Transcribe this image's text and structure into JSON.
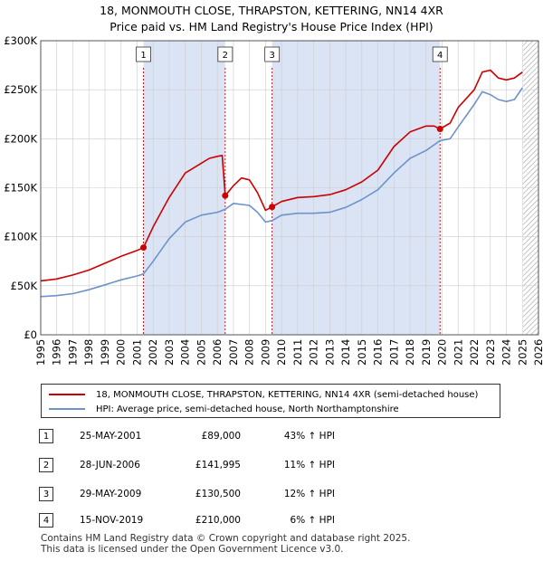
{
  "title_line1": "18, MONMOUTH CLOSE, THRAPSTON, KETTERING, NN14 4XR",
  "title_line2": "Price paid vs. HM Land Registry's House Price Index (HPI)",
  "colors": {
    "price_line": "#cc0000",
    "hpi_line": "#6d93c8",
    "shade": "#dbe4f5",
    "grid": "#cccccc",
    "hatch": "#9e9e9e"
  },
  "chart_data": {
    "type": "line",
    "title": "Price paid vs. HM Land Registry's House Price Index (HPI)",
    "xlabel": "",
    "ylabel": "",
    "xlim": [
      1995,
      2026
    ],
    "ylim": [
      0,
      300000
    ],
    "ytick_values": [
      0,
      50000,
      100000,
      150000,
      200000,
      250000,
      300000
    ],
    "ytick_labels": [
      "£0",
      "£50K",
      "£100K",
      "£150K",
      "£200K",
      "£250K",
      "£300K"
    ],
    "xtick_values": [
      1995,
      1996,
      1997,
      1998,
      1999,
      2000,
      2001,
      2002,
      2003,
      2004,
      2005,
      2006,
      2007,
      2008,
      2009,
      2010,
      2011,
      2012,
      2013,
      2014,
      2015,
      2016,
      2017,
      2018,
      2019,
      2020,
      2021,
      2022,
      2023,
      2024,
      2025,
      2026
    ],
    "xtick_labels": [
      "1995",
      "1996",
      "1997",
      "1998",
      "1999",
      "2000",
      "2001",
      "2002",
      "2003",
      "2004",
      "2005",
      "2006",
      "2007",
      "2008",
      "2009",
      "2010",
      "2011",
      "2012",
      "2013",
      "2014",
      "2015",
      "2016",
      "2017",
      "2018",
      "2019",
      "2020",
      "2021",
      "2022",
      "2023",
      "2024",
      "2025",
      "2026"
    ],
    "shaded_spans": [
      [
        2001.4,
        2006.49
      ],
      [
        2009.41,
        2019.87
      ]
    ],
    "future_from": 2025.05,
    "series": [
      {
        "name": "18, MONMOUTH CLOSE, THRAPSTON, KETTERING, NN14 4XR (semi-detached house)",
        "x": [
          1995.0,
          1996.0,
          1997.0,
          1998.0,
          1999.0,
          2000.0,
          2001.0,
          2001.4,
          2002.0,
          2003.0,
          2004.0,
          2005.0,
          2005.5,
          2006.0,
          2006.3,
          2006.49,
          2007.0,
          2007.5,
          2008.0,
          2008.5,
          2009.0,
          2009.41,
          2010.0,
          2011.0,
          2012.0,
          2013.0,
          2014.0,
          2015.0,
          2016.0,
          2017.0,
          2018.0,
          2019.0,
          2019.5,
          2019.87,
          2020.5,
          2021.0,
          2022.0,
          2022.5,
          2023.0,
          2023.5,
          2024.0,
          2024.5,
          2025.0
        ],
        "y": [
          55000,
          57000,
          61000,
          66000,
          73000,
          80000,
          86000,
          89000,
          110000,
          140000,
          165000,
          175000,
          180000,
          182000,
          183000,
          141995,
          152000,
          160000,
          158000,
          145000,
          127000,
          130500,
          136000,
          140000,
          141000,
          143000,
          148000,
          156000,
          168000,
          192000,
          207000,
          213000,
          213000,
          210000,
          216000,
          232000,
          250000,
          268000,
          270000,
          262000,
          260000,
          262000,
          268000
        ]
      },
      {
        "name": "HPI: Average price, semi-detached house, North Northamptonshire",
        "x": [
          1995.0,
          1996.0,
          1997.0,
          1998.0,
          1999.0,
          2000.0,
          2001.0,
          2001.4,
          2002.0,
          2003.0,
          2004.0,
          2005.0,
          2006.0,
          2006.49,
          2007.0,
          2008.0,
          2008.5,
          2009.0,
          2009.41,
          2010.0,
          2011.0,
          2012.0,
          2013.0,
          2014.0,
          2015.0,
          2016.0,
          2017.0,
          2018.0,
          2019.0,
          2019.87,
          2020.5,
          2021.0,
          2022.0,
          2022.5,
          2023.0,
          2023.5,
          2024.0,
          2024.5,
          2025.0
        ],
        "y": [
          39000,
          40000,
          42000,
          46000,
          51000,
          56000,
          60000,
          62000,
          75000,
          98000,
          115000,
          122000,
          125000,
          128000,
          134000,
          132000,
          125000,
          115000,
          116500,
          122000,
          124000,
          124000,
          125000,
          130000,
          138000,
          148000,
          165000,
          180000,
          188000,
          198000,
          200000,
          212000,
          235000,
          248000,
          245000,
          240000,
          238000,
          240000,
          252000
        ]
      }
    ],
    "sales": [
      {
        "label": "1",
        "x": 2001.4,
        "y": 89000
      },
      {
        "label": "2",
        "x": 2006.49,
        "y": 141995
      },
      {
        "label": "3",
        "x": 2009.41,
        "y": 130500
      },
      {
        "label": "4",
        "x": 2019.87,
        "y": 210000
      }
    ]
  },
  "legend": {
    "price_label": "18, MONMOUTH CLOSE, THRAPSTON, KETTERING, NN14 4XR (semi-detached house)",
    "hpi_label": "HPI: Average price, semi-detached house, North Northamptonshire"
  },
  "transactions": [
    {
      "num": "1",
      "date": "25-MAY-2001",
      "price": "£89,000",
      "hpi": "43% ↑ HPI"
    },
    {
      "num": "2",
      "date": "28-JUN-2006",
      "price": "£141,995",
      "hpi": "11% ↑ HPI"
    },
    {
      "num": "3",
      "date": "29-MAY-2009",
      "price": "£130,500",
      "hpi": "12% ↑ HPI"
    },
    {
      "num": "4",
      "date": "15-NOV-2019",
      "price": "£210,000",
      "hpi": "6% ↑ HPI"
    }
  ],
  "footer_line1": "Contains HM Land Registry data © Crown copyright and database right 2025.",
  "footer_line2": "This data is licensed under the Open Government Licence v3.0."
}
